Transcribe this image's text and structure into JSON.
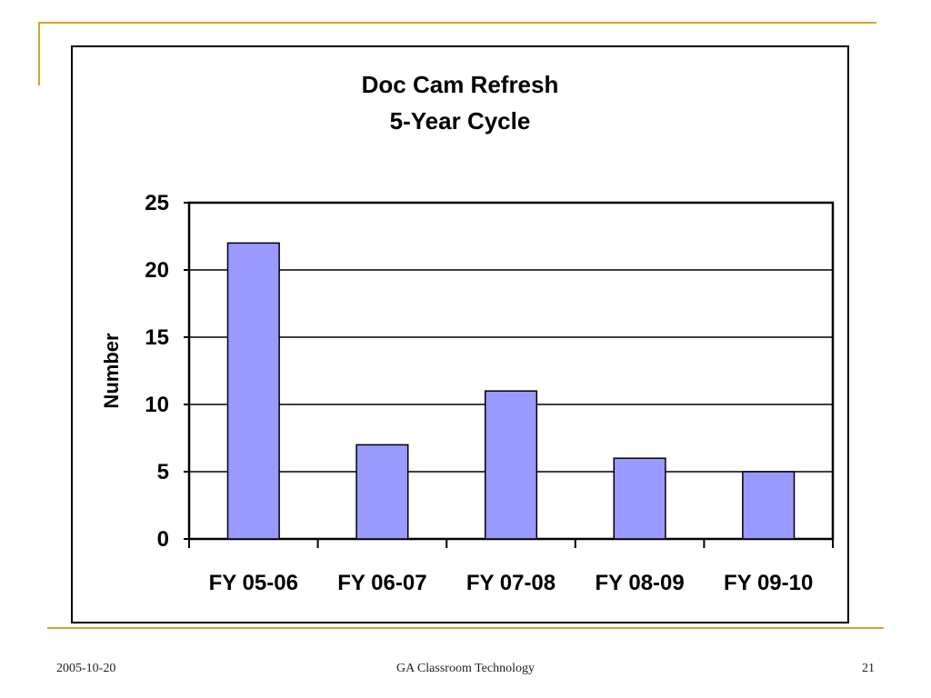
{
  "slide": {
    "footer_date": "2005-10-20",
    "footer_center": "GA Classroom Technology",
    "footer_page": "21",
    "accent_color": "#d6a624"
  },
  "chart_data": {
    "type": "bar",
    "title_lines": [
      "Doc Cam Refresh",
      "5-Year Cycle"
    ],
    "xlabel": "",
    "ylabel": "Number",
    "categories": [
      "FY 05-06",
      "FY 06-07",
      "FY 07-08",
      "FY 08-09",
      "FY 09-10"
    ],
    "values": [
      22,
      7,
      11,
      6,
      5
    ],
    "ylim": [
      0,
      25
    ],
    "yticks": [
      0,
      5,
      10,
      15,
      20,
      25
    ],
    "grid": true,
    "bar_color": "#9999ff",
    "legend": "none"
  }
}
